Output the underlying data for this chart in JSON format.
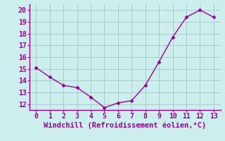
{
  "x": [
    0,
    1,
    2,
    3,
    4,
    5,
    6,
    7,
    8,
    9,
    10,
    11,
    12,
    13
  ],
  "y": [
    15.1,
    14.3,
    13.6,
    13.4,
    12.6,
    11.7,
    12.1,
    12.3,
    13.6,
    15.6,
    17.7,
    19.4,
    20.0,
    19.4
  ],
  "line_color": "#990099",
  "marker": "D",
  "marker_size": 2.5,
  "line_width": 1.0,
  "background_color": "#cceeed",
  "grid_color": "#aacccc",
  "xlabel": "Windchill (Refroidissement éolien,°C)",
  "xlabel_color": "#990099",
  "xlabel_fontsize": 7.5,
  "tick_color": "#990099",
  "tick_fontsize": 7,
  "xlim": [
    -0.5,
    13.5
  ],
  "ylim": [
    11.5,
    20.5
  ],
  "yticks": [
    12,
    13,
    14,
    15,
    16,
    17,
    18,
    19,
    20
  ],
  "xticks": [
    0,
    1,
    2,
    3,
    4,
    5,
    6,
    7,
    8,
    9,
    10,
    11,
    12,
    13
  ],
  "spine_color": "#990099"
}
